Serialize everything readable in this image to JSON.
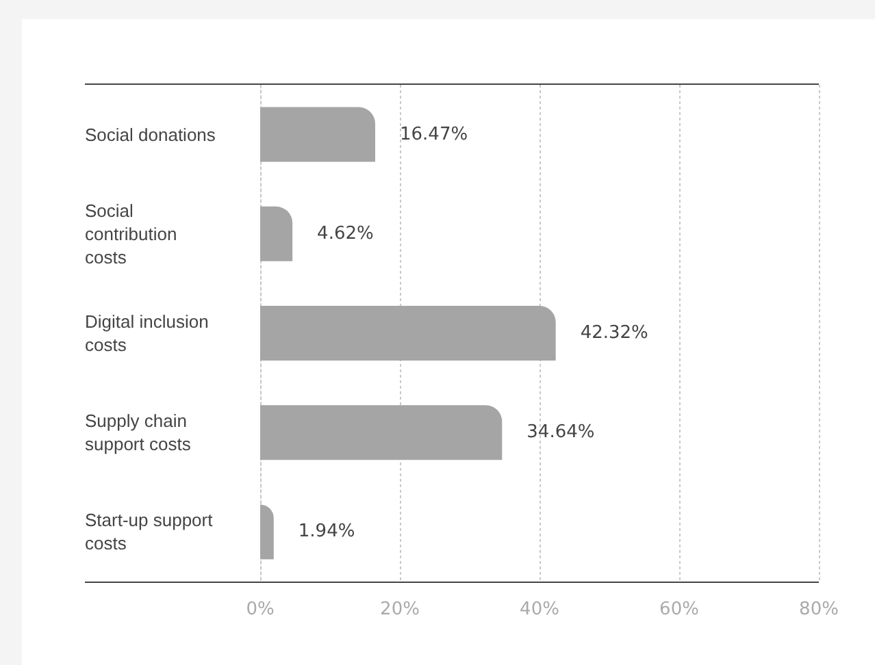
{
  "chart_data": {
    "type": "bar",
    "orientation": "horizontal",
    "categories": [
      "Social donations",
      "Social contribution costs",
      "Digital inclusion costs",
      "Supply chain support costs",
      "Start-up support costs"
    ],
    "values": [
      16.47,
      4.62,
      42.32,
      34.64,
      1.94
    ],
    "value_labels": [
      "16.47%",
      "4.62%",
      "42.32%",
      "34.64%",
      "1.94%"
    ],
    "color": "#a5a5a5",
    "xlim": [
      0,
      80
    ],
    "xticks": [
      {
        "value": 0,
        "label": "0%"
      },
      {
        "value": 20,
        "label": "20%"
      },
      {
        "value": 40,
        "label": "40%"
      },
      {
        "value": 60,
        "label": "60%"
      },
      {
        "value": 80,
        "label": "80%"
      }
    ],
    "grid": "x"
  }
}
